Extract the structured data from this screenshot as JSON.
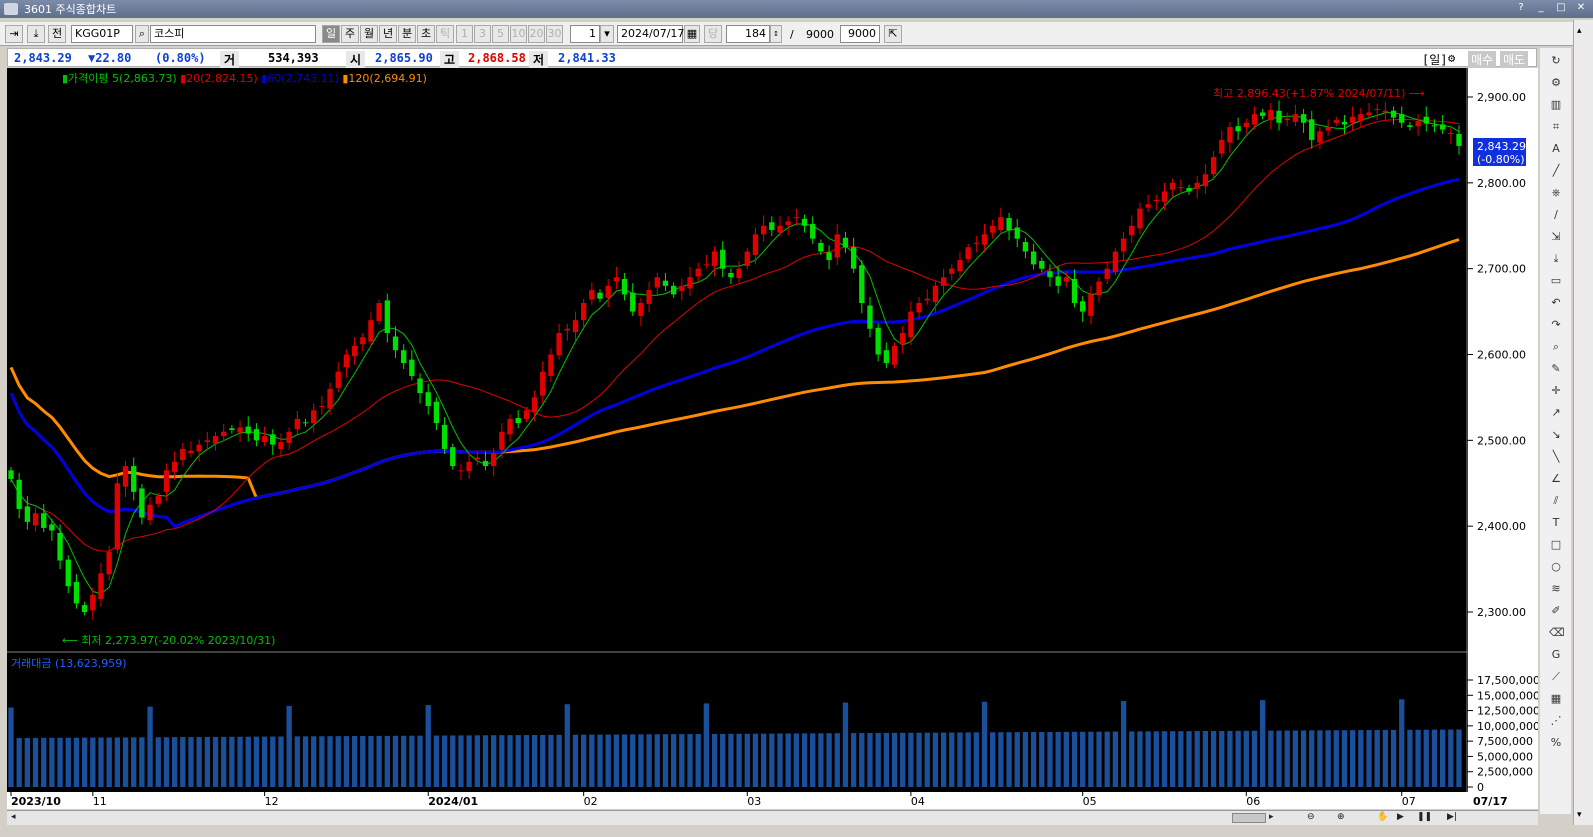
{
  "window": {
    "title": "3601 주식종합차트"
  },
  "toolbar": {
    "jeon_label": "전",
    "code": "KGG01P",
    "name": "코스피",
    "periods": [
      "일",
      "주",
      "월",
      "년",
      "분",
      "초",
      "틱"
    ],
    "selected_period": "일",
    "intervals": [
      "1",
      "3",
      "5",
      "10",
      "20",
      "30"
    ],
    "interval_value": "1",
    "date": "2024/07/17",
    "dang_label": "당",
    "count": "184",
    "slash": "/",
    "total": "9000",
    "max": "9000"
  },
  "quote": {
    "price": "2,843.29",
    "change": "▼22.80",
    "pct": "(0.80%)",
    "volume_label": "거",
    "volume": "534,393",
    "open_label": "시",
    "open": "2,865.90",
    "high_label": "고",
    "high": "2,868.58",
    "low_label": "저",
    "low": "2,841.33",
    "period_tag": "[일]",
    "buy_label": "매수",
    "sell_label": "매도"
  },
  "legend": {
    "ma_title": "가격이평",
    "ma5": "5(2,863.73)",
    "ma20": "20(2,824.15)",
    "ma60": "60(2,743.11)",
    "ma120": "120(2,694.91)"
  },
  "annotations": {
    "high": "최고 2,896.43(+1.87% 2024/07/11)",
    "low": "최저 2,273.97(-20.02% 2023/10/31)",
    "current_price": "2,843.29",
    "current_pct": "(-0.80%)"
  },
  "volume_legend": "거래대금 (13,623,959)",
  "colors": {
    "up": "#e00000",
    "down": "#00e000",
    "ma5": "#00c000",
    "ma20": "#e00000",
    "ma60": "#0000e0",
    "ma120": "#ff8c00",
    "volume": "#1a4f9a"
  },
  "chart_data": {
    "type": "candlestick",
    "price_axis": {
      "ticks": [
        "2,900.00",
        "2,800.00",
        "2,700.00",
        "2,600.00",
        "2,500.00",
        "2,400.00",
        "2,300.00"
      ],
      "values": [
        2900,
        2800,
        2700,
        2600,
        2500,
        2400,
        2300
      ]
    },
    "volume_axis": {
      "ticks": [
        "17,500,000",
        "15,000,000",
        "12,500,000",
        "10,000,000",
        "7,500,000",
        "5,000,000",
        "2,500,000",
        "0"
      ],
      "values": [
        17500000,
        15000000,
        12500000,
        10000000,
        7500000,
        5000000,
        2500000,
        0
      ]
    },
    "x_labels": [
      {
        "label": "2023/10",
        "index": 0
      },
      {
        "label": "11",
        "index": 10
      },
      {
        "label": "12",
        "index": 31
      },
      {
        "label": "2024/01",
        "index": 51
      },
      {
        "label": "02",
        "index": 70
      },
      {
        "label": "03",
        "index": 90
      },
      {
        "label": "04",
        "index": 110
      },
      {
        "label": "05",
        "index": 131
      },
      {
        "label": "06",
        "index": 151
      },
      {
        "label": "07",
        "index": 170
      },
      {
        "label": "07/17",
        "index": 184
      }
    ],
    "close_series": [
      2455,
      2420,
      2405,
      2415,
      2398,
      2395,
      2360,
      2330,
      2310,
      2300,
      2320,
      2345,
      2370,
      2450,
      2470,
      2440,
      2410,
      2425,
      2435,
      2465,
      2475,
      2490,
      2488,
      2495,
      2500,
      2505,
      2510,
      2512,
      2515,
      2508,
      2500,
      2505,
      2495,
      2498,
      2510,
      2525,
      2520,
      2535,
      2540,
      2560,
      2580,
      2600,
      2610,
      2620,
      2640,
      2660,
      2625,
      2605,
      2590,
      2575,
      2555,
      2540,
      2520,
      2490,
      2470,
      2465,
      2475,
      2480,
      2470,
      2485,
      2510,
      2525,
      2520,
      2535,
      2550,
      2580,
      2600,
      2625,
      2630,
      2640,
      2660,
      2675,
      2665,
      2680,
      2690,
      2670,
      2650,
      2660,
      2675,
      2690,
      2680,
      2670,
      2680,
      2690,
      2700,
      2705,
      2720,
      2700,
      2690,
      2700,
      2720,
      2740,
      2750,
      2745,
      2750,
      2755,
      2760,
      2750,
      2735,
      2720,
      2710,
      2740,
      2725,
      2700,
      2660,
      2630,
      2600,
      2590,
      2610,
      2625,
      2650,
      2660,
      2665,
      2680,
      2690,
      2700,
      2710,
      2725,
      2730,
      2740,
      2750,
      2760,
      2745,
      2735,
      2720,
      2705,
      2700,
      2690,
      2680,
      2690,
      2660,
      2650,
      2670,
      2685,
      2700,
      2720,
      2735,
      2750,
      2770,
      2775,
      2780,
      2790,
      2800,
      2795,
      2790,
      2800,
      2810,
      2830,
      2850,
      2865,
      2860,
      2870,
      2880,
      2878,
      2885,
      2870,
      2875,
      2880,
      2870,
      2850,
      2860,
      2865,
      2873,
      2868,
      2877,
      2880,
      2882,
      2886,
      2884,
      2876,
      2870,
      2865,
      2872,
      2869,
      2866,
      2862,
      2858,
      2843
    ]
  },
  "rtool_icons": [
    "refresh-icon",
    "gear-icon",
    "bar-chart-icon",
    "pattern-icon",
    "auto-icon",
    "trend-icon",
    "candle-icon",
    "line-icon",
    "export-icon",
    "download-icon",
    "window-icon",
    "undo-icon",
    "redo-icon",
    "zoom-icon",
    "text-tool-icon",
    "crosshair-icon",
    "ray-icon",
    "segment-icon",
    "line-tool-icon",
    "angle-icon",
    "parallel-icon",
    "text-t-icon",
    "rect-icon",
    "circle-icon",
    "fib-icon",
    "pen-icon",
    "eraser-icon",
    "g-icon",
    "diag-icon",
    "grid-icon",
    "fan-icon",
    "percent-icon"
  ]
}
